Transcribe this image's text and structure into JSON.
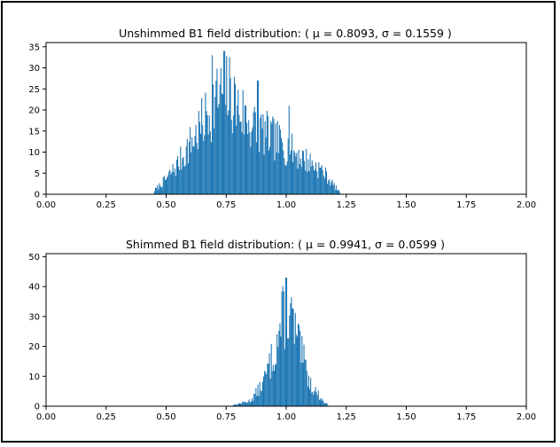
{
  "charts": [
    {
      "title": "Unshimmed B1 field distribution: ( μ = 0.8093,  σ = 0.1559 )",
      "mu": 0.8093,
      "sigma": 0.1559
    },
    {
      "title": "Shimmed B1 field distribution: ( μ = 0.9941,  σ = 0.0599 )",
      "mu": 0.9941,
      "sigma": 0.0599
    }
  ],
  "chart_data": [
    {
      "type": "bar",
      "title": "Unshimmed B1 field distribution: ( μ = 0.8093,  σ = 0.1559 )",
      "xlabel": "",
      "ylabel": "",
      "xlim": [
        0,
        2.0
      ],
      "ylim": [
        0,
        36
      ],
      "xticks": [
        "0.00",
        "0.25",
        "0.50",
        "0.75",
        "1.00",
        "1.25",
        "1.50",
        "1.75",
        "2.00"
      ],
      "yticks": [
        "0",
        "5",
        "10",
        "15",
        "20",
        "25",
        "30",
        "35"
      ],
      "color": "#1f77b4",
      "bin_width": 0.004,
      "bins_x": [
        0.45,
        0.5,
        0.55,
        0.6,
        0.65,
        0.7,
        0.75,
        0.8,
        0.85,
        0.9,
        0.95,
        1.0,
        1.05,
        1.1,
        1.15,
        1.2,
        1.23
      ],
      "bins_y": [
        1,
        4,
        8,
        13,
        18,
        24,
        27,
        22,
        18,
        16,
        14,
        12,
        10,
        8,
        6,
        2,
        0
      ],
      "peaks": [
        {
          "x": 0.69,
          "y": 33
        },
        {
          "x": 0.74,
          "y": 34
        },
        {
          "x": 0.88,
          "y": 27
        },
        {
          "x": 1.01,
          "y": 21
        }
      ]
    },
    {
      "type": "bar",
      "title": "Shimmed B1 field distribution: ( μ = 0.9941,  σ = 0.0599 )",
      "xlabel": "",
      "ylabel": "",
      "xlim": [
        0,
        2.0
      ],
      "ylim": [
        0,
        51
      ],
      "xticks": [
        "0.00",
        "0.25",
        "0.50",
        "0.75",
        "1.00",
        "1.25",
        "1.50",
        "1.75",
        "2.00"
      ],
      "yticks": [
        "0",
        "10",
        "20",
        "30",
        "40",
        "50"
      ],
      "color": "#1f77b4",
      "bin_width": 0.004,
      "bins_x": [
        0.76,
        0.85,
        0.9,
        0.95,
        1.0,
        1.05,
        1.1,
        1.15,
        1.18
      ],
      "bins_y": [
        0,
        2,
        8,
        20,
        37,
        22,
        8,
        2,
        0
      ],
      "peaks": [
        {
          "x": 1.0,
          "y": 43
        }
      ]
    }
  ]
}
